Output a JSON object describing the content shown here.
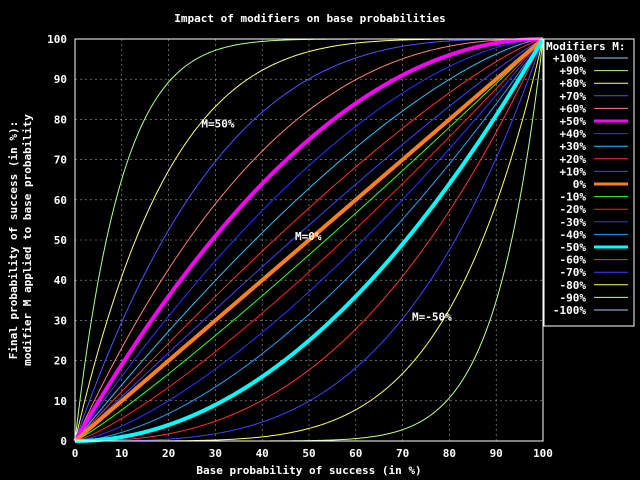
{
  "chart_data": {
    "type": "line",
    "title": "Impact of modifiers on base probabilities",
    "xlabel": "Base probability of success (in %)",
    "ylabel_line1": "Final probability of success (in %):",
    "ylabel_line2": "modifier M applied to base probability",
    "xlim": [
      0,
      100
    ],
    "ylim": [
      0,
      100
    ],
    "xticks": [
      "0",
      "10",
      "20",
      "30",
      "40",
      "50",
      "60",
      "70",
      "80",
      "90",
      "100"
    ],
    "yticks": [
      "0",
      "10",
      "20",
      "30",
      "40",
      "50",
      "60",
      "70",
      "80",
      "90",
      "100"
    ],
    "grid": true,
    "legend_title": "Modifiers M:",
    "legend_position": "right",
    "formula": "M>0: y = 100*(1-(1-x/100)^(1/(1-M))); M<0: y = 100*(x/100)^(1/(1+M))",
    "series": [
      {
        "name": "+100%",
        "modifier": 1.0,
        "color": "#a0c8ff",
        "bold": false
      },
      {
        "name": "+90%",
        "modifier": 0.9,
        "color": "#b0ff90",
        "bold": false
      },
      {
        "name": "+80%",
        "modifier": 0.8,
        "color": "#ffff80",
        "bold": false
      },
      {
        "name": "+70%",
        "modifier": 0.7,
        "color": "#5050ff",
        "bold": false
      },
      {
        "name": "+60%",
        "modifier": 0.6,
        "color": "#ff8080",
        "bold": false
      },
      {
        "name": "+50%",
        "modifier": 0.5,
        "color": "#ff00ff",
        "bold": true
      },
      {
        "name": "+40%",
        "modifier": 0.4,
        "color": "#3030ff",
        "bold": false
      },
      {
        "name": "+30%",
        "modifier": 0.3,
        "color": "#30c0ff",
        "bold": false
      },
      {
        "name": "+20%",
        "modifier": 0.2,
        "color": "#ff3030",
        "bold": false
      },
      {
        "name": "+10%",
        "modifier": 0.1,
        "color": "#4040ff",
        "bold": false
      },
      {
        "name": "0%",
        "modifier": 0.0,
        "color": "#ff8020",
        "bold": true
      },
      {
        "name": "-10%",
        "modifier": -0.1,
        "color": "#30ff30",
        "bold": false
      },
      {
        "name": "-20%",
        "modifier": -0.2,
        "color": "#ff2020",
        "bold": false
      },
      {
        "name": "-30%",
        "modifier": -0.3,
        "color": "#3030ff",
        "bold": false
      },
      {
        "name": "-40%",
        "modifier": -0.4,
        "color": "#20a0ff",
        "bold": false
      },
      {
        "name": "-50%",
        "modifier": -0.5,
        "color": "#00ffff",
        "bold": true
      },
      {
        "name": "-60%",
        "modifier": -0.6,
        "color": "#ff3030",
        "bold": false
      },
      {
        "name": "-70%",
        "modifier": -0.7,
        "color": "#4040ff",
        "bold": false
      },
      {
        "name": "-80%",
        "modifier": -0.8,
        "color": "#ffff60",
        "bold": false
      },
      {
        "name": "-90%",
        "modifier": -0.9,
        "color": "#c0ff90",
        "bold": false
      },
      {
        "name": "-100%",
        "modifier": -1.0,
        "color": "#a0c8ff",
        "bold": false
      }
    ],
    "annotations": [
      {
        "text": "M=50%",
        "x": 27,
        "y": 78
      },
      {
        "text": "M=0%",
        "x": 47,
        "y": 50
      },
      {
        "text": "M=-50%",
        "x": 72,
        "y": 30
      }
    ]
  }
}
